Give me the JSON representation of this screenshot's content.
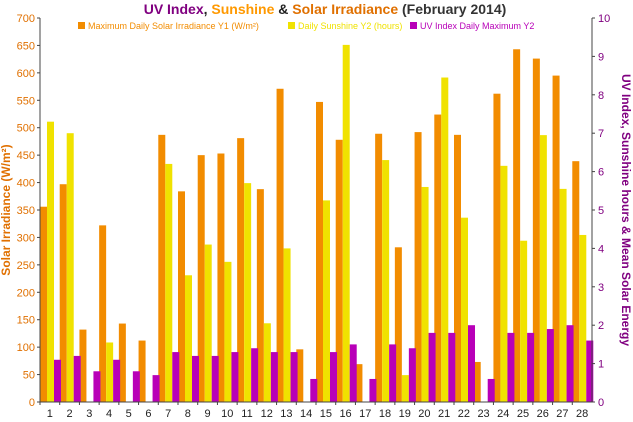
{
  "chart_data": {
    "type": "bar",
    "title_parts": [
      {
        "text": "UV Index",
        "color": "#800080"
      },
      {
        "text": ", ",
        "color": "#222222"
      },
      {
        "text": "Sunshine",
        "color": "#ff9900"
      },
      {
        "text": " & ",
        "color": "#222222"
      },
      {
        "text": "Solar Irradiance",
        "color": "#e07000"
      },
      {
        "text": " (February 2014)",
        "color": "#333333"
      }
    ],
    "ylabel": "Solar Irradiance (W/m²)",
    "y2label": "UV Index, Sunshine hours & Mean Solar Energy",
    "y1lim": [
      0,
      700
    ],
    "y1ticks": [
      0,
      50,
      100,
      150,
      200,
      250,
      300,
      350,
      400,
      450,
      500,
      550,
      600,
      650,
      700
    ],
    "y2lim": [
      0,
      10
    ],
    "y2ticks": [
      0,
      1,
      2,
      3,
      4,
      5,
      6,
      7,
      8,
      9,
      10
    ],
    "grid": false,
    "legend_position": "top",
    "categories": [
      "1",
      "2",
      "3",
      "4",
      "5",
      "6",
      "7",
      "8",
      "9",
      "10",
      "11",
      "12",
      "13",
      "14",
      "15",
      "16",
      "17",
      "18",
      "19",
      "20",
      "21",
      "22",
      "23",
      "24",
      "25",
      "26",
      "27",
      "28"
    ],
    "series": [
      {
        "name": "Maximum Daily Solar Irradiance Y1 (W/m²)",
        "axis": "y1",
        "color": "#f28c00",
        "values": [
          356,
          397,
          132,
          322,
          143,
          112,
          487,
          384,
          450,
          453,
          481,
          388,
          571,
          96,
          547,
          478,
          69,
          489,
          282,
          492,
          524,
          487,
          73,
          562,
          643,
          626,
          595,
          439
        ]
      },
      {
        "name": "Daily Sunshine Y2 (hours)",
        "axis": "y2",
        "color": "#f0e200",
        "values": [
          7.3,
          7.0,
          0,
          1.55,
          0,
          0,
          6.2,
          3.3,
          4.1,
          3.65,
          5.7,
          2.05,
          4.0,
          0,
          5.25,
          9.3,
          0,
          6.3,
          0.7,
          5.6,
          8.45,
          4.8,
          0,
          6.15,
          4.2,
          6.95,
          5.55,
          4.35
        ]
      },
      {
        "name": "UV Index Daily Maximum Y2",
        "axis": "y2",
        "color": "#b800b8",
        "values": [
          1.1,
          1.2,
          0.8,
          1.1,
          0.8,
          0.7,
          1.3,
          1.2,
          1.2,
          1.3,
          1.4,
          1.3,
          1.3,
          0.6,
          1.3,
          1.5,
          0.6,
          1.5,
          1.4,
          1.8,
          1.8,
          2.0,
          0.6,
          1.8,
          1.8,
          1.9,
          2.0,
          1.6
        ]
      }
    ],
    "left_axis_color": "#e07000",
    "right_axis_color": "#800080"
  }
}
